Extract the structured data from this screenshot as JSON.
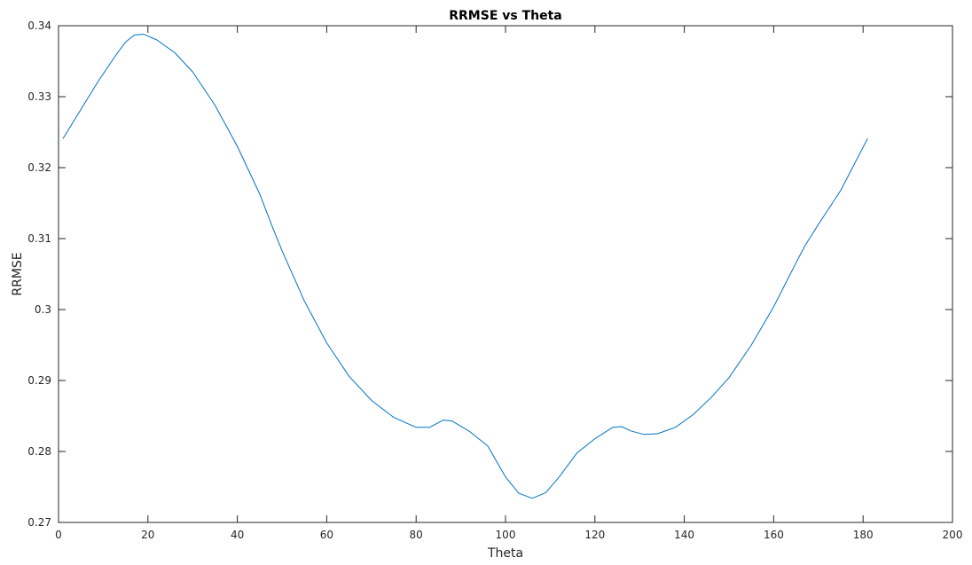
{
  "chart_data": {
    "type": "line",
    "title": "RRMSE vs Theta",
    "xlabel": "Theta",
    "ylabel": "RRMSE",
    "xlim": [
      0,
      200
    ],
    "ylim": [
      0.27,
      0.34
    ],
    "xticks": [
      0,
      20,
      40,
      60,
      80,
      100,
      120,
      140,
      160,
      180,
      200
    ],
    "yticks": [
      0.27,
      0.28,
      0.29,
      0.3,
      0.31,
      0.32,
      0.33,
      0.34
    ],
    "ytick_labels": [
      "0.27",
      "0.28",
      "0.29",
      "0.3",
      "0.31",
      "0.32",
      "0.33",
      "0.34"
    ],
    "grid": false,
    "box": true,
    "colors": {
      "line": "#0072BD",
      "axes": "#262626"
    },
    "series": [
      {
        "x": [
          1,
          5,
          9,
          13,
          15,
          17,
          19,
          22,
          26,
          30,
          35,
          40,
          45,
          48,
          50,
          55,
          60,
          65,
          70,
          75,
          80,
          83,
          86,
          88,
          92,
          96,
          100,
          103,
          106,
          109,
          112,
          116,
          120,
          124,
          126,
          128,
          131,
          134,
          138,
          142,
          146,
          150,
          155,
          160,
          165,
          167,
          170,
          175,
          181
        ],
        "y": [
          0.3241,
          0.3282,
          0.3323,
          0.336,
          0.3377,
          0.3387,
          0.3388,
          0.338,
          0.3362,
          0.3335,
          0.3288,
          0.323,
          0.3163,
          0.3114,
          0.3083,
          0.3012,
          0.2953,
          0.2906,
          0.2872,
          0.2848,
          0.2834,
          0.2834,
          0.2844,
          0.2843,
          0.2828,
          0.2808,
          0.2764,
          0.2741,
          0.2734,
          0.2742,
          0.2764,
          0.2798,
          0.2818,
          0.2834,
          0.2835,
          0.2829,
          0.2824,
          0.2825,
          0.2834,
          0.2852,
          0.2876,
          0.2904,
          0.295,
          0.3004,
          0.3066,
          0.309,
          0.312,
          0.3168,
          0.3241
        ]
      }
    ]
  }
}
